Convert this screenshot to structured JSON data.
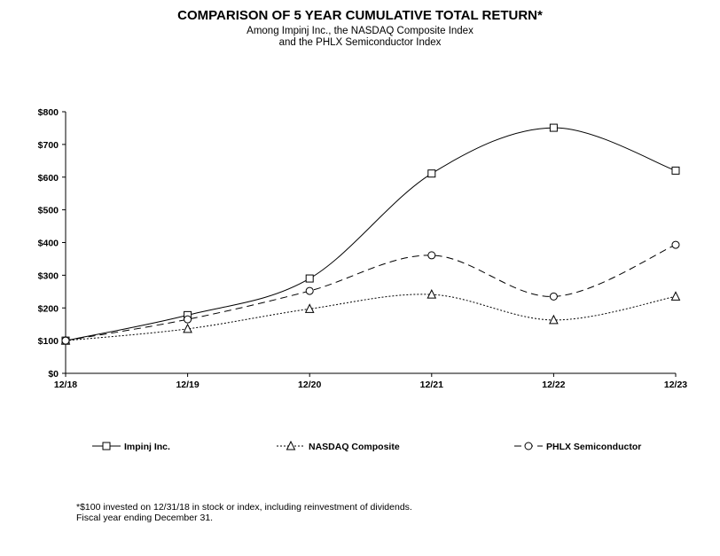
{
  "header": {
    "title": "COMPARISON OF 5 YEAR CUMULATIVE TOTAL RETURN*",
    "subtitle_line1": "Among Impinj Inc., the NASDAQ Composite Index",
    "subtitle_line2": "and the PHLX Semiconductor Index"
  },
  "chart_data": {
    "type": "line",
    "x": [
      "12/18",
      "12/19",
      "12/20",
      "12/21",
      "12/22",
      "12/23"
    ],
    "ylim": [
      0,
      800
    ],
    "yticks": [
      0,
      100,
      200,
      300,
      400,
      500,
      600,
      700,
      800
    ],
    "ytick_labels": [
      "$0",
      "$100",
      "$200",
      "$300",
      "$400",
      "$500",
      "$600",
      "$700",
      "$800"
    ],
    "grid": false,
    "legend_position": "bottom",
    "series": [
      {
        "name": "Impinj Inc.",
        "values": [
          100,
          178,
          290,
          611,
          751,
          620
        ],
        "marker": "square",
        "dash": "solid"
      },
      {
        "name": "NASDAQ Composite",
        "values": [
          100,
          136,
          197,
          241,
          163,
          235
        ],
        "marker": "triangle",
        "dash": "dotted"
      },
      {
        "name": "PHLX Semiconductor",
        "values": [
          100,
          165,
          252,
          361,
          235,
          393
        ],
        "marker": "circle",
        "dash": "dashed"
      }
    ]
  },
  "footnote": {
    "line1": "*$100 invested on 12/31/18 in stock or index, including reinvestment of dividends.",
    "line2": "Fiscal year ending December 31."
  }
}
